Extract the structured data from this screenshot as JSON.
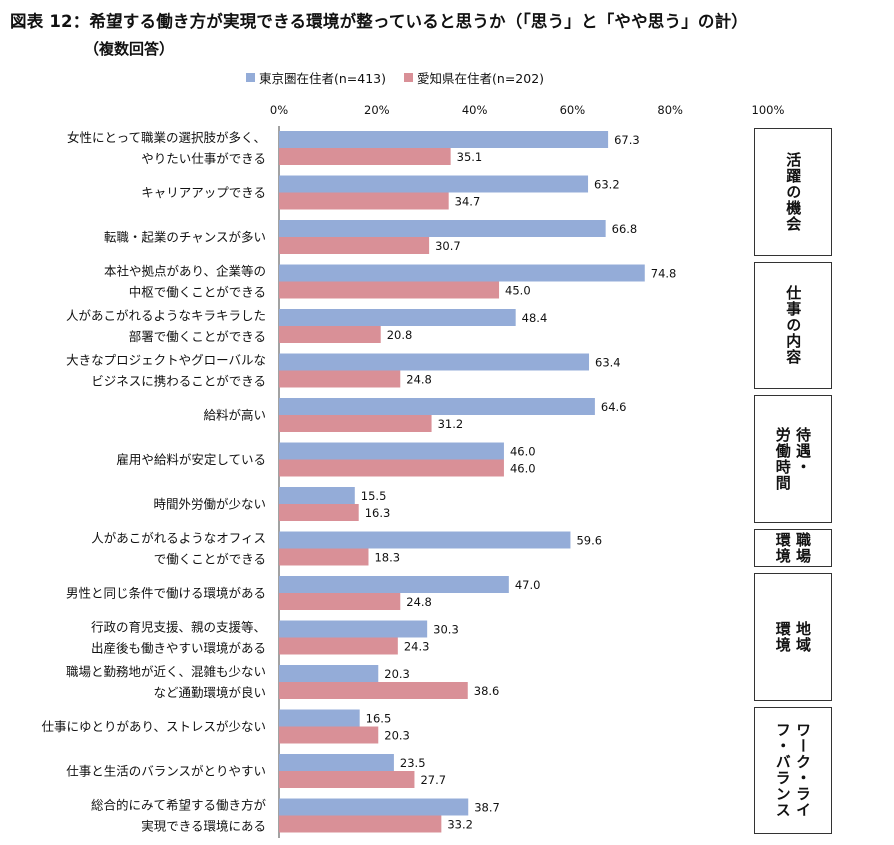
{
  "title": "図表 12：希望する働き方が実現できる環境が整っていると思うか（「思う」と「やや思う」の計）",
  "subtitle": "（複数回答）",
  "chart_data": {
    "type": "bar",
    "orientation": "horizontal",
    "xlim": [
      0,
      100
    ],
    "xticks": [
      "0%",
      "20%",
      "40%",
      "60%",
      "80%",
      "100%"
    ],
    "legend_position": "top",
    "categories": [
      [
        "女性にとって職業の選択肢が多く、",
        "やりたい仕事ができる"
      ],
      [
        "キャリアアップできる"
      ],
      [
        "転職・起業のチャンスが多い"
      ],
      [
        "本社や拠点があり、企業等の",
        "中枢で働くことができる"
      ],
      [
        "人があこがれるようなキラキラした",
        "部署で働くことができる"
      ],
      [
        "大きなプロジェクトやグローバルな",
        "ビジネスに携わることができる"
      ],
      [
        "給料が高い"
      ],
      [
        "雇用や給料が安定している"
      ],
      [
        "時間外労働が少ない"
      ],
      [
        "人があこがれるようなオフィス",
        "で働くことができる"
      ],
      [
        "男性と同じ条件で働ける環境がある"
      ],
      [
        "行政の育児支援、親の支援等、",
        "出産後も働きやすい環境がある"
      ],
      [
        "職場と勤務地が近く、混雑も少ない",
        "など通勤環境が良い"
      ],
      [
        "仕事にゆとりがあり、ストレスが少ない"
      ],
      [
        "仕事と生活のバランスがとりやすい"
      ],
      [
        "総合的にみて希望する働き方が",
        "実現できる環境にある"
      ]
    ],
    "series": [
      {
        "name": "東京圏在住者(n=413)",
        "color": "#94acd8",
        "values": [
          67.3,
          63.2,
          66.8,
          74.8,
          48.4,
          63.4,
          64.6,
          46.0,
          15.5,
          59.6,
          47.0,
          30.3,
          20.3,
          16.5,
          23.5,
          38.7
        ]
      },
      {
        "name": "愛知県在住者(n=202)",
        "color": "#d99097",
        "values": [
          35.1,
          34.7,
          30.7,
          45.0,
          20.8,
          24.8,
          31.2,
          46.0,
          16.3,
          18.3,
          24.8,
          24.3,
          38.6,
          20.3,
          27.7,
          33.2
        ]
      }
    ],
    "groups": [
      {
        "label": "活躍の機会",
        "start": 0,
        "end": 2
      },
      {
        "label": "仕事の内容",
        "start": 3,
        "end": 5
      },
      {
        "label": "待遇・\n労働時間",
        "start": 6,
        "end": 8
      },
      {
        "label": "職場\n環境",
        "start": 9,
        "end": 9
      },
      {
        "label": "地域\n環境",
        "start": 10,
        "end": 12
      },
      {
        "label": "ワーク・ライ\nフ・バランス",
        "start": 13,
        "end": 15
      }
    ]
  }
}
